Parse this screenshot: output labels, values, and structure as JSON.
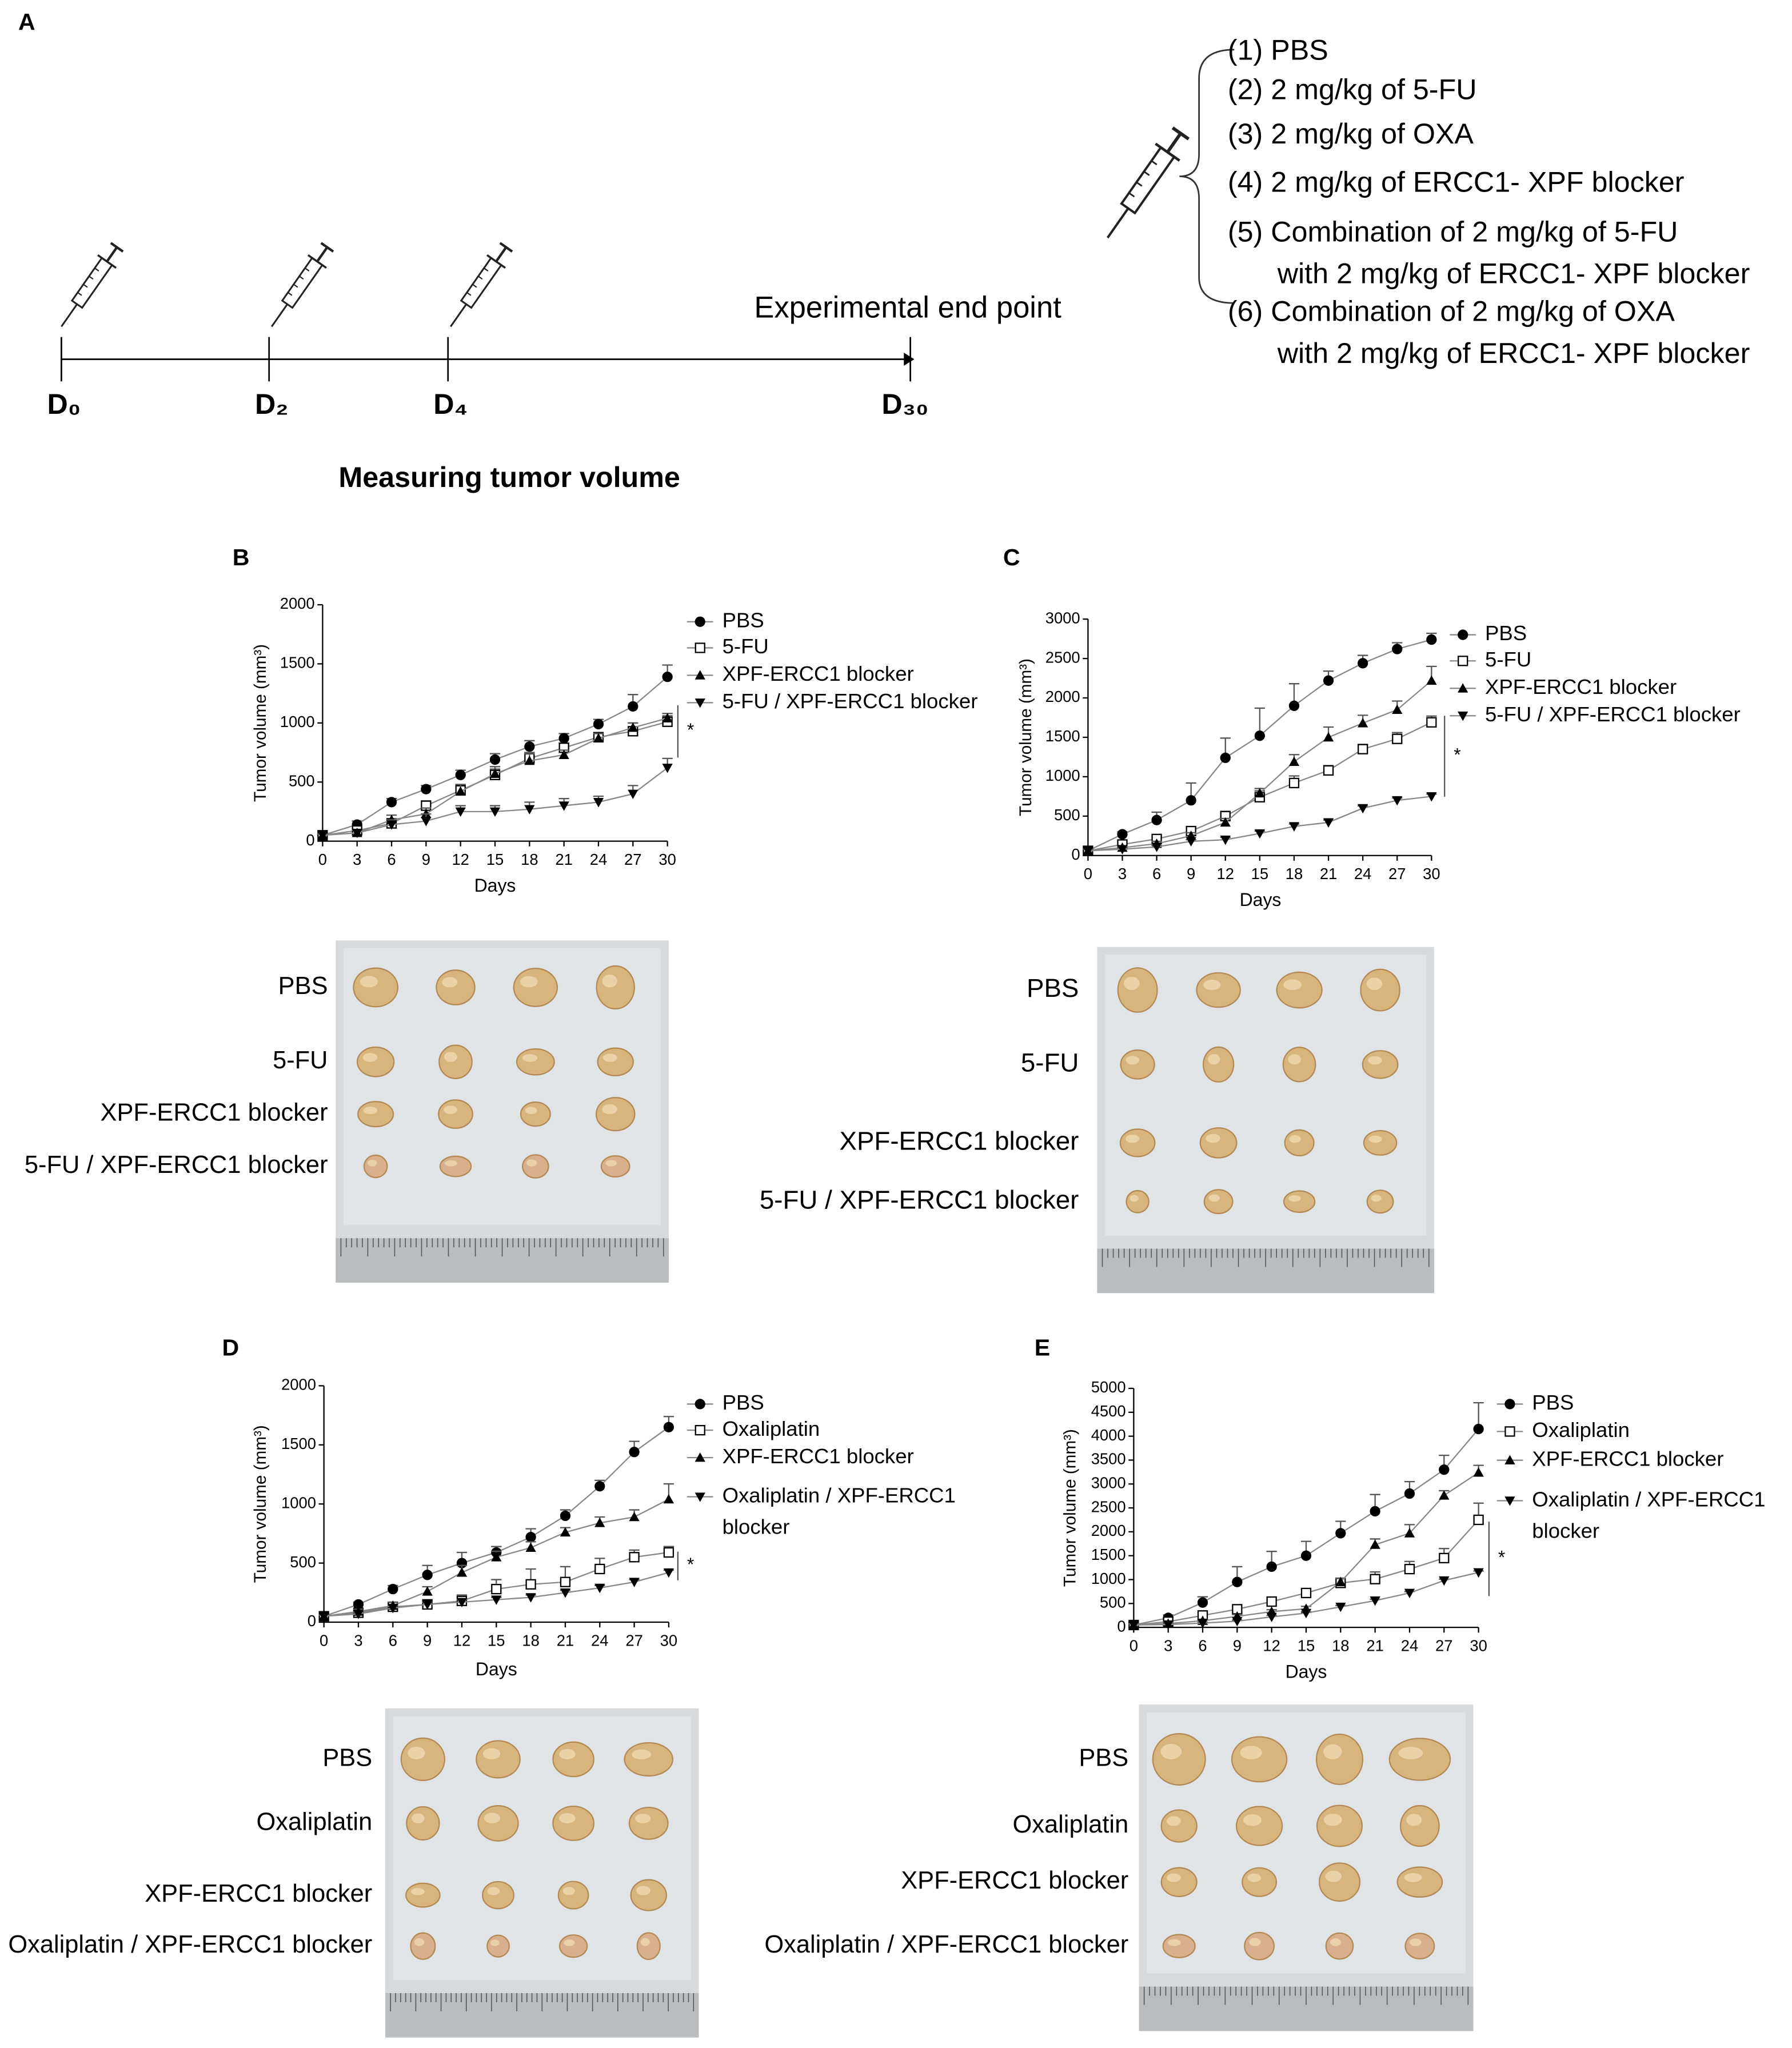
{
  "panel_a": {
    "label": "A",
    "timepoints": [
      "D₀",
      "D₂",
      "D₄",
      "D₃₀"
    ],
    "end_point": "Experimental end point",
    "measure": "Measuring tumor volume",
    "treatments": [
      [
        "(1) PBS"
      ],
      [
        "(2) 2 mg/kg of 5-FU"
      ],
      [
        "(3) 2 mg/kg of OXA"
      ],
      [
        "(4) 2 mg/kg of ERCC1- XPF blocker"
      ],
      [
        "(5) Combination of 2 mg/kg of 5-FU",
        "with 2 mg/kg of ERCC1- XPF blocker"
      ],
      [
        "(6) Combination of 2 mg/kg of OXA",
        "with 2 mg/kg of ERCC1- XPF blocker"
      ]
    ]
  },
  "chart_data": [
    {
      "type": "line",
      "panel": "B",
      "x_label": "Days",
      "y_label": "Tumor volume (mm³)",
      "x": [
        0,
        3,
        6,
        9,
        12,
        15,
        18,
        21,
        24,
        27,
        30
      ],
      "xlim": [
        0,
        30
      ],
      "xticks": [
        0,
        3,
        6,
        9,
        12,
        15,
        18,
        21,
        24,
        27,
        30
      ],
      "ylim": [
        0,
        2000
      ],
      "yticks": [
        0,
        500,
        1000,
        1500,
        2000
      ],
      "annotation": "*",
      "series": [
        {
          "name": "PBS",
          "marker": "circle",
          "color": "#000000",
          "values": [
            50,
            140,
            330,
            440,
            560,
            690,
            800,
            870,
            990,
            1140,
            1390
          ],
          "errors": [
            10,
            30,
            30,
            30,
            40,
            50,
            50,
            40,
            40,
            100,
            100
          ]
        },
        {
          "name": "5-FU",
          "marker": "square",
          "color": "#000000",
          "values": [
            50,
            90,
            150,
            300,
            430,
            560,
            700,
            790,
            880,
            930,
            1010
          ],
          "errors": [
            10,
            20,
            40,
            40,
            40,
            50,
            50,
            40,
            30,
            30,
            50
          ]
        },
        {
          "name": "XPF-ERCC1 blocker",
          "marker": "triangle-up",
          "color": "#000000",
          "values": [
            50,
            70,
            180,
            230,
            420,
            570,
            680,
            730,
            870,
            960,
            1040
          ],
          "errors": [
            10,
            20,
            40,
            50,
            60,
            60,
            60,
            40,
            40,
            40,
            40
          ]
        },
        {
          "name": "5-FU / XPF-ERCC1 blocker",
          "marker": "triangle-down",
          "color": "#000000",
          "values": [
            50,
            70,
            140,
            170,
            250,
            250,
            270,
            300,
            330,
            400,
            620
          ],
          "errors": [
            10,
            20,
            40,
            60,
            50,
            50,
            60,
            60,
            50,
            70,
            80
          ]
        }
      ]
    },
    {
      "type": "line",
      "panel": "C",
      "x_label": "Days",
      "y_label": "Tumor volume (mm³)",
      "x": [
        0,
        3,
        6,
        9,
        12,
        15,
        18,
        21,
        24,
        27,
        30
      ],
      "xlim": [
        0,
        30
      ],
      "xticks": [
        0,
        3,
        6,
        9,
        12,
        15,
        18,
        21,
        24,
        27,
        30
      ],
      "ylim": [
        0,
        3000
      ],
      "yticks": [
        0,
        500,
        1000,
        1500,
        2000,
        2500,
        3000
      ],
      "annotation": "*",
      "series": [
        {
          "name": "PBS",
          "marker": "circle",
          "color": "#000000",
          "values": [
            60,
            270,
            450,
            700,
            1240,
            1520,
            1900,
            2220,
            2440,
            2620,
            2740
          ],
          "errors": [
            20,
            30,
            100,
            220,
            250,
            350,
            280,
            120,
            100,
            80,
            80
          ]
        },
        {
          "name": "5-FU",
          "marker": "square",
          "color": "#000000",
          "values": [
            60,
            140,
            210,
            310,
            500,
            740,
            920,
            1080,
            1350,
            1480,
            1690
          ],
          "errors": [
            20,
            30,
            40,
            50,
            60,
            80,
            90,
            60,
            60,
            80,
            80
          ]
        },
        {
          "name": "XPF-ERCC1 blocker",
          "marker": "triangle-up",
          "color": "#000000",
          "values": [
            60,
            100,
            150,
            250,
            420,
            790,
            1190,
            1500,
            1680,
            1850,
            2220
          ],
          "errors": [
            20,
            20,
            30,
            40,
            50,
            60,
            90,
            130,
            100,
            110,
            180
          ]
        },
        {
          "name": "5-FU / XPF-ERCC1 blocker",
          "marker": "triangle-down",
          "color": "#000000",
          "values": [
            60,
            80,
            110,
            180,
            200,
            280,
            370,
            420,
            600,
            700,
            750
          ],
          "errors": [
            20,
            20,
            20,
            20,
            30,
            30,
            30,
            30,
            30,
            30,
            30
          ]
        }
      ]
    },
    {
      "type": "line",
      "panel": "D",
      "x_label": "Days",
      "y_label": "Tumor volume (mm³)",
      "x": [
        0,
        3,
        6,
        9,
        12,
        15,
        18,
        21,
        24,
        27,
        30
      ],
      "xlim": [
        0,
        30
      ],
      "xticks": [
        0,
        3,
        6,
        9,
        12,
        15,
        18,
        21,
        24,
        27,
        30
      ],
      "ylim": [
        0,
        2000
      ],
      "yticks": [
        0,
        500,
        1000,
        1500,
        2000
      ],
      "annotation": "*",
      "series": [
        {
          "name": "PBS",
          "marker": "circle",
          "color": "#000000",
          "values": [
            50,
            150,
            280,
            400,
            500,
            590,
            720,
            900,
            1150,
            1440,
            1650
          ],
          "errors": [
            10,
            20,
            30,
            80,
            90,
            50,
            70,
            50,
            50,
            90,
            90
          ]
        },
        {
          "name": "Oxaliplatin",
          "marker": "square",
          "color": "#000000",
          "values": [
            50,
            80,
            130,
            150,
            180,
            280,
            320,
            340,
            450,
            550,
            590
          ],
          "errors": [
            10,
            20,
            30,
            40,
            50,
            80,
            130,
            130,
            90,
            60,
            50
          ]
        },
        {
          "name": "XPF-ERCC1 blocker",
          "marker": "triangle-up",
          "color": "#000000",
          "values": [
            50,
            90,
            140,
            260,
            420,
            550,
            630,
            760,
            840,
            890,
            1040
          ],
          "errors": [
            10,
            20,
            30,
            40,
            60,
            50,
            50,
            40,
            50,
            60,
            130
          ]
        },
        {
          "name": "Oxaliplatin / XPF-ERCC1 blocker",
          "marker": "triangle-down",
          "color": "#000000",
          "values": [
            50,
            70,
            120,
            150,
            170,
            190,
            210,
            250,
            290,
            340,
            420
          ],
          "errors": [
            10,
            10,
            20,
            20,
            20,
            20,
            20,
            20,
            20,
            20,
            20
          ]
        }
      ]
    },
    {
      "type": "line",
      "panel": "E",
      "x_label": "Days",
      "y_label": "Tumor volume (mm³)",
      "x": [
        0,
        3,
        6,
        9,
        12,
        15,
        18,
        21,
        24,
        27,
        30
      ],
      "xlim": [
        0,
        30
      ],
      "xticks": [
        0,
        3,
        6,
        9,
        12,
        15,
        18,
        21,
        24,
        27,
        30
      ],
      "ylim": [
        0,
        5000
      ],
      "yticks": [
        0,
        500,
        1000,
        1500,
        2000,
        2500,
        3000,
        3500,
        4000,
        4500,
        5000
      ],
      "annotation": "*",
      "series": [
        {
          "name": "PBS",
          "marker": "circle",
          "color": "#000000",
          "values": [
            50,
            200,
            520,
            950,
            1270,
            1500,
            1970,
            2430,
            2800,
            3300,
            4150
          ],
          "errors": [
            50,
            60,
            120,
            320,
            320,
            300,
            250,
            350,
            250,
            300,
            550
          ]
        },
        {
          "name": "Oxaliplatin",
          "marker": "square",
          "color": "#000000",
          "values": [
            50,
            120,
            250,
            380,
            540,
            720,
            930,
            1010,
            1220,
            1450,
            2250
          ],
          "errors": [
            30,
            40,
            60,
            60,
            60,
            80,
            100,
            150,
            160,
            200,
            350
          ]
        },
        {
          "name": "XPF-ERCC1 blocker",
          "marker": "triangle-up",
          "color": "#000000",
          "values": [
            50,
            80,
            140,
            230,
            330,
            390,
            950,
            1730,
            1970,
            2760,
            3240
          ],
          "errors": [
            30,
            30,
            30,
            40,
            40,
            50,
            80,
            120,
            180,
            100,
            150
          ]
        },
        {
          "name": "Oxaliplatin / XPF-ERCC1 blocker",
          "marker": "triangle-down",
          "color": "#000000",
          "values": [
            50,
            60,
            90,
            130,
            220,
            300,
            430,
            560,
            720,
            980,
            1150
          ],
          "errors": [
            20,
            20,
            20,
            20,
            30,
            30,
            30,
            30,
            30,
            30,
            30
          ]
        }
      ]
    }
  ],
  "photos": [
    {
      "rows": [
        "PBS",
        "5-FU",
        "XPF-ERCC1 blocker",
        "5-FU / XPF-ERCC1 blocker"
      ]
    },
    {
      "rows": [
        "PBS",
        "5-FU",
        "XPF-ERCC1 blocker",
        "5-FU / XPF-ERCC1 blocker"
      ]
    },
    {
      "rows": [
        "PBS",
        "Oxaliplatin",
        "XPF-ERCC1 blocker",
        "Oxaliplatin / XPF-ERCC1 blocker"
      ]
    },
    {
      "rows": [
        "PBS",
        "Oxaliplatin",
        "XPF-ERCC1 blocker",
        "Oxaliplatin / XPF-ERCC1 blocker"
      ]
    }
  ]
}
